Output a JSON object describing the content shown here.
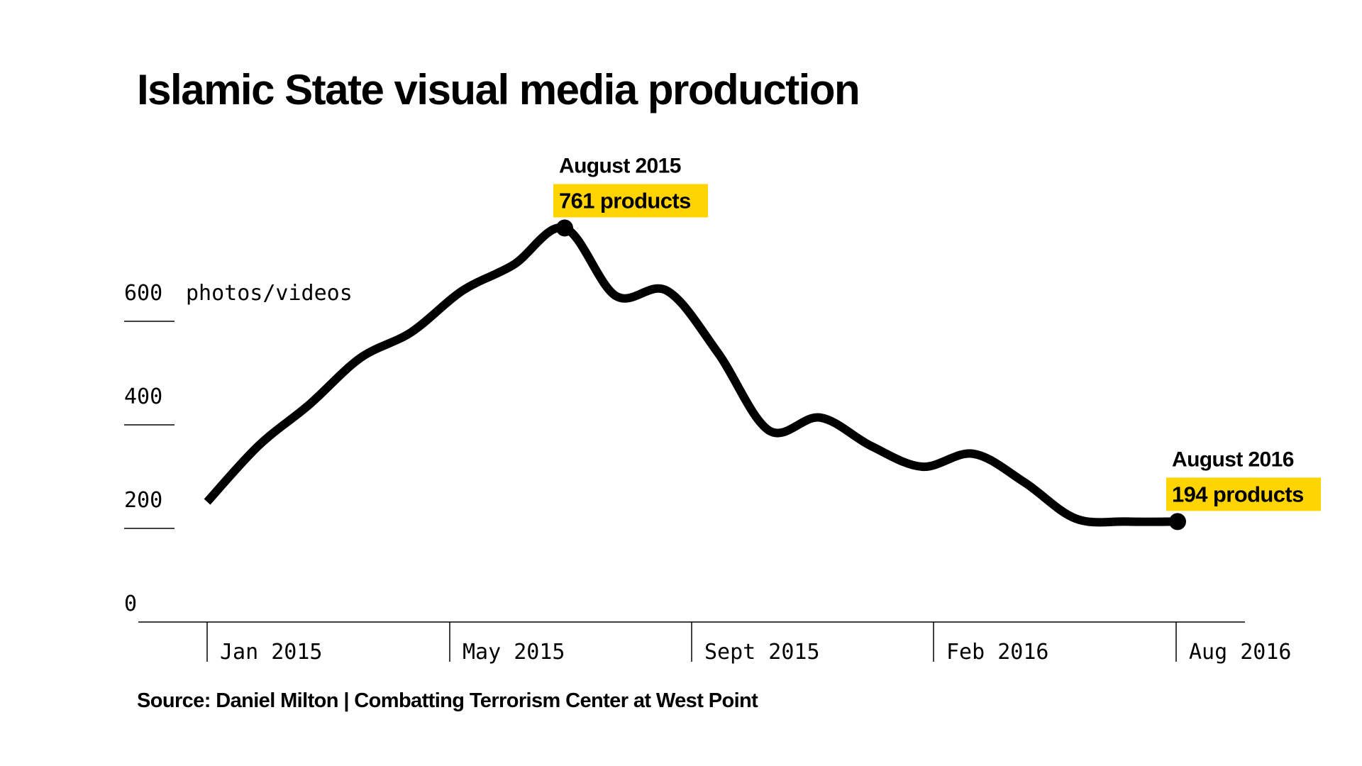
{
  "title": "Islamic State visual media production",
  "source": "Source: Daniel Milton | Combatting Terrorism Center at West Point",
  "colors": {
    "line": "#000000",
    "highlight": "#ffd400",
    "axis": "#000000",
    "background": "#ffffff"
  },
  "chart_data": {
    "type": "line",
    "title": "Islamic State visual media production",
    "xlabel": "",
    "ylabel": "photos/videos",
    "unit_label": "photos/videos",
    "ylim": [
      0,
      800
    ],
    "y_ticks": [
      "0",
      "200",
      "400",
      "600"
    ],
    "x_ticks": [
      "Jan 2015",
      "May 2015",
      "Sept 2015",
      "Feb 2016",
      "Aug 2016"
    ],
    "grid": false,
    "legend": "none",
    "series": [
      {
        "name": "",
        "x": [
          "Jan 2015",
          "Feb 2015",
          "Mar 2015",
          "Apr 2015",
          "May 2015",
          "Jun 2015",
          "Jul 2015",
          "Aug 2015",
          "Sep 2015",
          "Oct 2015",
          "Nov 2015",
          "Dec 2015",
          "Jan 2016",
          "Feb 2016",
          "Mar 2016",
          "Apr 2016",
          "May 2016",
          "Jun 2016",
          "Jul 2016",
          "Aug 2016"
        ],
        "values": [
          232,
          340,
          420,
          510,
          560,
          640,
          690,
          761,
          630,
          640,
          520,
          370,
          395,
          340,
          300,
          325,
          270,
          200,
          194,
          194
        ]
      }
    ],
    "annotations": [
      {
        "date": "August 2015",
        "value_label": "761 products",
        "x": "Aug 2015",
        "y": 761
      },
      {
        "date": "August 2016",
        "value_label": "194 products",
        "x": "Aug 2016",
        "y": 194
      }
    ]
  }
}
